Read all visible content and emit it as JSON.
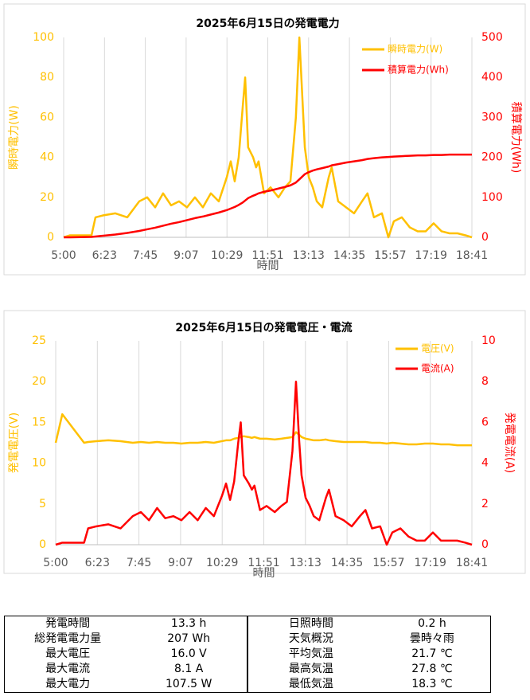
{
  "chart_data": [
    {
      "type": "line",
      "title": "2025年6月15日の発電電力",
      "xlabel": "時間",
      "ylabel": "瞬時電力(W)",
      "y2label": "積算電力(Wh)",
      "x": [
        300,
        313,
        356,
        364,
        380,
        404,
        428,
        452,
        468,
        484,
        500,
        516,
        532,
        548,
        564,
        580,
        596,
        612,
        628,
        636,
        644,
        652,
        660,
        665,
        671,
        681,
        687,
        692,
        703,
        716,
        732,
        745,
        756,
        767,
        774,
        780,
        785,
        793,
        801,
        809,
        820,
        833,
        839,
        852,
        868,
        884,
        900,
        911,
        924,
        940,
        953,
        964,
        980,
        996,
        1012,
        1028,
        1044,
        1060,
        1076,
        1092,
        1108,
        1121
      ],
      "xlim": [
        300,
        1121
      ],
      "xticks": [
        {
          "value": 300,
          "label": "5:00"
        },
        {
          "value": 382.1,
          "label": "6:23"
        },
        {
          "value": 464.2,
          "label": "7:45"
        },
        {
          "value": 546.3,
          "label": "9:07"
        },
        {
          "value": 628.4,
          "label": "10:29"
        },
        {
          "value": 710.5,
          "label": "11:51"
        },
        {
          "value": 792.6,
          "label": "13:13"
        },
        {
          "value": 874.7,
          "label": "14:35"
        },
        {
          "value": 956.8,
          "label": "15:57"
        },
        {
          "value": 1038.9,
          "label": "17:19"
        },
        {
          "value": 1121,
          "label": "18:41"
        }
      ],
      "ylim": [
        0,
        100
      ],
      "yticks": [
        0,
        20,
        40,
        60,
        80,
        100
      ],
      "y2lim": [
        0,
        500
      ],
      "y2ticks": [
        0,
        100,
        200,
        300,
        400,
        500
      ],
      "grid": "x",
      "legend": "upper right",
      "series": [
        {
          "name": "瞬時電力(W)",
          "color": "#ffc000",
          "values": [
            0,
            1,
            1,
            10,
            11,
            12,
            10,
            18,
            20,
            15,
            22,
            16,
            18,
            15,
            20,
            15,
            22,
            18,
            30,
            38,
            28,
            40,
            65,
            80,
            45,
            40,
            35,
            38,
            22,
            25,
            20,
            25,
            28,
            60,
            100,
            70,
            45,
            30,
            25,
            18,
            15,
            30,
            35,
            18,
            15,
            12,
            18,
            22,
            10,
            12,
            0,
            8,
            10,
            5,
            3,
            3,
            7,
            3,
            2,
            2,
            1,
            0
          ]
        },
        {
          "name": "積算電力(Wh)",
          "color": "#ff0000",
          "axis": "y2",
          "values": [
            0,
            0,
            1,
            2,
            4,
            7,
            11,
            16,
            20,
            24,
            29,
            34,
            38,
            43,
            48,
            52,
            57,
            62,
            68,
            72,
            76,
            81,
            87,
            92,
            98,
            104,
            107,
            110,
            114,
            117,
            122,
            126,
            130,
            137,
            145,
            152,
            158,
            163,
            167,
            170,
            173,
            177,
            180,
            183,
            187,
            190,
            193,
            196,
            198,
            200,
            201,
            202,
            203,
            204,
            205,
            205,
            206,
            206,
            207,
            207,
            207,
            207
          ]
        }
      ]
    },
    {
      "type": "line",
      "title": "2025年6月15日の発電電圧・電流",
      "xlabel": "時間",
      "ylabel": "発電電圧(V)",
      "y2label": "発電電流(A)",
      "x": [
        300,
        313,
        356,
        364,
        380,
        404,
        428,
        452,
        468,
        484,
        500,
        516,
        532,
        548,
        564,
        580,
        596,
        612,
        628,
        636,
        644,
        652,
        660,
        665,
        671,
        681,
        687,
        692,
        703,
        716,
        732,
        745,
        756,
        767,
        774,
        780,
        785,
        793,
        801,
        809,
        820,
        833,
        839,
        852,
        868,
        884,
        900,
        911,
        924,
        940,
        953,
        964,
        980,
        996,
        1012,
        1028,
        1044,
        1060,
        1076,
        1092,
        1108,
        1121
      ],
      "xlim": [
        300,
        1121
      ],
      "xticks": [
        {
          "value": 300,
          "label": "5:00"
        },
        {
          "value": 382.1,
          "label": "6:23"
        },
        {
          "value": 464.2,
          "label": "7:45"
        },
        {
          "value": 546.3,
          "label": "9:07"
        },
        {
          "value": 628.4,
          "label": "10:29"
        },
        {
          "value": 710.5,
          "label": "11:51"
        },
        {
          "value": 792.6,
          "label": "13:13"
        },
        {
          "value": 874.7,
          "label": "14:35"
        },
        {
          "value": 956.8,
          "label": "15:57"
        },
        {
          "value": 1038.9,
          "label": "17:19"
        },
        {
          "value": 1121,
          "label": "18:41"
        }
      ],
      "ylim": [
        0,
        25
      ],
      "yticks": [
        0,
        5,
        10,
        15,
        20,
        25
      ],
      "y2lim": [
        0,
        10
      ],
      "y2ticks": [
        0,
        2,
        4,
        6,
        8,
        10
      ],
      "grid": "x",
      "legend": "upper right",
      "series": [
        {
          "name": "電圧(V)",
          "color": "#ffc000",
          "values": [
            12.5,
            16.0,
            12.5,
            12.6,
            12.7,
            12.8,
            12.7,
            12.5,
            12.6,
            12.5,
            12.6,
            12.5,
            12.5,
            12.4,
            12.5,
            12.5,
            12.6,
            12.5,
            12.7,
            12.8,
            12.8,
            13.0,
            13.1,
            13.2,
            13.3,
            13.2,
            13.1,
            13.2,
            13.0,
            13.0,
            12.9,
            13.0,
            13.1,
            13.2,
            13.8,
            13.5,
            13.2,
            13.0,
            12.9,
            12.8,
            12.8,
            12.9,
            12.8,
            12.7,
            12.6,
            12.6,
            12.6,
            12.6,
            12.5,
            12.5,
            12.4,
            12.5,
            12.4,
            12.3,
            12.3,
            12.4,
            12.4,
            12.3,
            12.3,
            12.2,
            12.2,
            12.2
          ]
        },
        {
          "name": "電流(A)",
          "color": "#ff0000",
          "axis": "y2",
          "values": [
            0,
            0.1,
            0.1,
            0.8,
            0.9,
            1.0,
            0.8,
            1.4,
            1.6,
            1.2,
            1.8,
            1.3,
            1.4,
            1.2,
            1.6,
            1.2,
            1.8,
            1.4,
            2.4,
            3.0,
            2.2,
            3.1,
            5.0,
            6.0,
            3.4,
            3.0,
            2.7,
            2.9,
            1.7,
            1.9,
            1.6,
            1.9,
            2.1,
            4.6,
            8.0,
            5.2,
            3.4,
            2.3,
            1.9,
            1.4,
            1.2,
            2.3,
            2.7,
            1.4,
            1.2,
            0.9,
            1.4,
            1.7,
            0.8,
            0.9,
            0,
            0.6,
            0.8,
            0.4,
            0.2,
            0.2,
            0.6,
            0.2,
            0.2,
            0.2,
            0.1,
            0
          ]
        }
      ]
    }
  ],
  "table": {
    "rows": [
      [
        "発電時間",
        "13.3 h",
        "日照時間",
        "0.2 h"
      ],
      [
        "総発電電力量",
        "207 Wh",
        "天気概況",
        "曇時々雨"
      ],
      [
        "最大電圧",
        "16.0 V",
        "平均気温",
        "21.7 ℃"
      ],
      [
        "最大電流",
        "8.1 A",
        "最高気温",
        "27.8 ℃"
      ],
      [
        "最大電力",
        "107.5 W",
        "最低気温",
        "18.3 ℃"
      ]
    ]
  }
}
